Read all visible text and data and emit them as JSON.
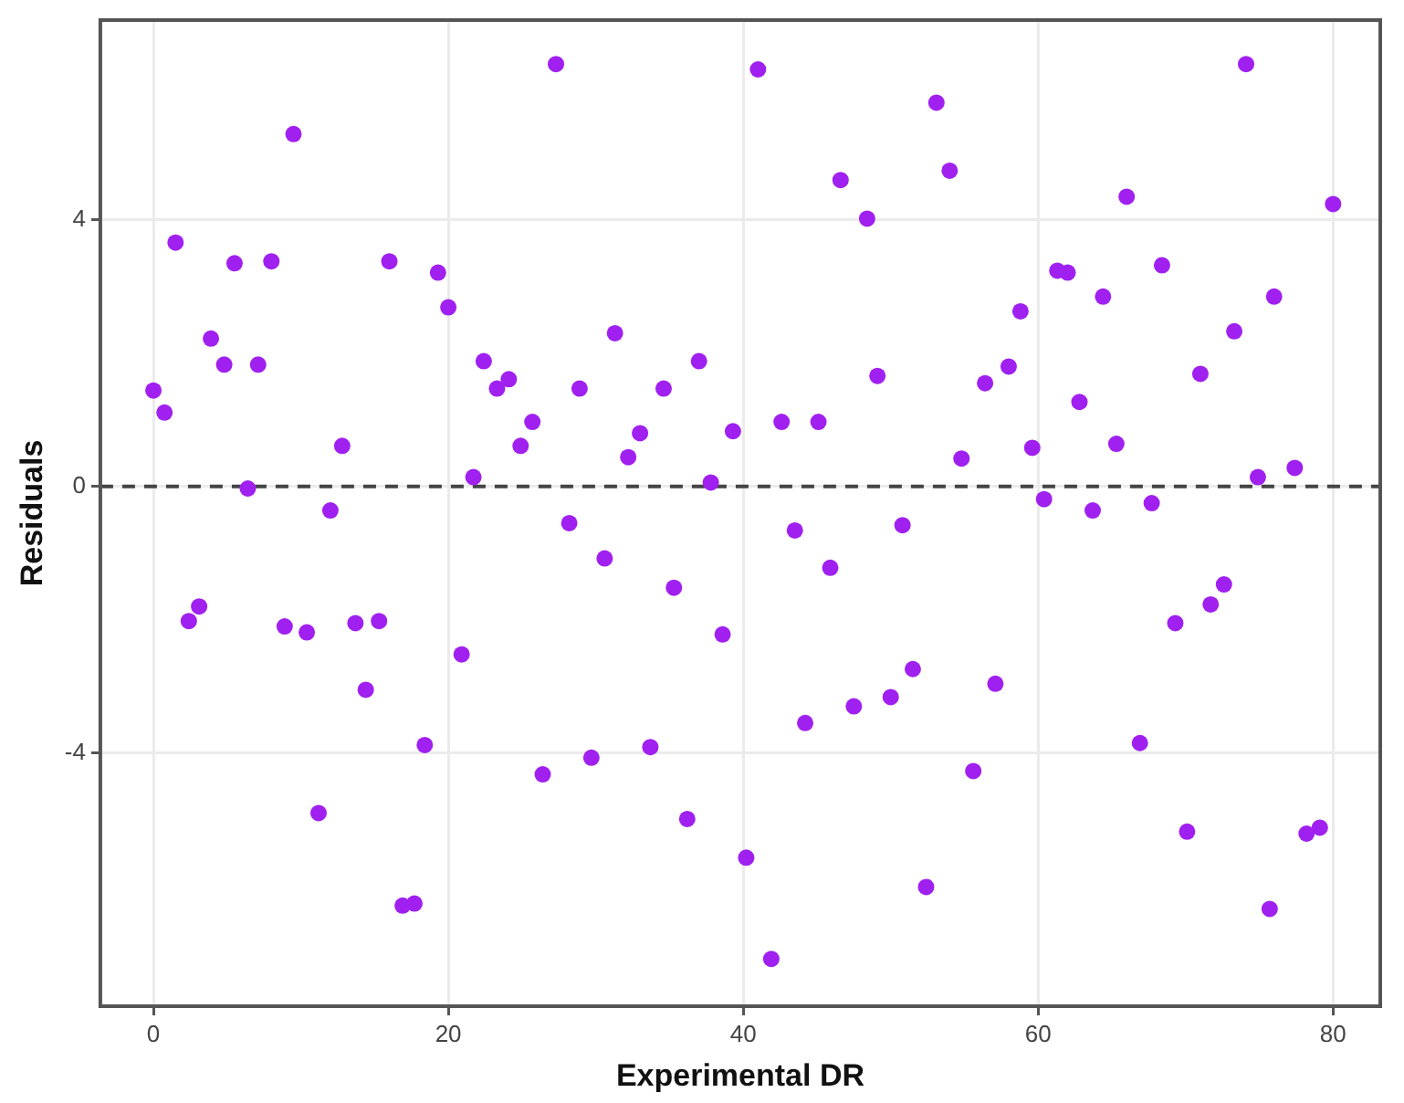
{
  "chart_data": {
    "type": "scatter",
    "xlabel": "Experimental DR",
    "ylabel": "Residuals",
    "x": [
      0,
      0.75,
      1.5,
      2.4,
      3.1,
      3.9,
      4.8,
      5.5,
      6.4,
      7.1,
      8.0,
      8.9,
      9.5,
      10.4,
      11.2,
      12.0,
      12.8,
      13.7,
      14.4,
      15.3,
      16.0,
      16.9,
      17.7,
      18.4,
      19.3,
      20.0,
      20.9,
      21.7,
      22.4,
      23.3,
      24.1,
      24.9,
      25.7,
      26.4,
      27.3,
      28.2,
      28.9,
      29.7,
      30.6,
      31.3,
      32.2,
      33.0,
      33.7,
      34.6,
      35.3,
      36.2,
      37.0,
      37.8,
      38.6,
      39.3,
      40.2,
      41.0,
      41.9,
      42.6,
      43.5,
      44.2,
      45.1,
      45.9,
      46.6,
      47.5,
      48.4,
      49.1,
      50.0,
      50.8,
      51.5,
      52.4,
      53.1,
      54.0,
      54.8,
      55.6,
      56.4,
      57.1,
      58.0,
      58.8,
      59.6,
      60.4,
      61.3,
      62.0,
      62.8,
      63.7,
      64.4,
      65.3,
      66.0,
      66.9,
      67.7,
      68.4,
      69.3,
      70.1,
      71.0,
      71.7,
      72.6,
      73.3,
      74.1,
      74.9,
      75.7,
      76.0,
      77.4,
      78.2,
      79.1,
      80.0
    ],
    "series": [
      {
        "color": "#a020f0",
        "values": [
          1.44,
          1.11,
          3.66,
          -2.02,
          -1.8,
          2.22,
          1.83,
          3.35,
          -0.03,
          1.83,
          3.38,
          -2.1,
          5.29,
          -2.19,
          -4.9,
          -0.36,
          0.61,
          -2.05,
          -3.05,
          -2.02,
          3.38,
          -6.29,
          -6.26,
          -3.88,
          3.21,
          2.69,
          -2.52,
          0.14,
          1.88,
          1.47,
          1.61,
          0.61,
          0.97,
          -4.32,
          6.34,
          -0.55,
          1.47,
          -4.07,
          -1.08,
          2.3,
          0.44,
          0.8,
          -3.91,
          1.47,
          -1.52,
          -4.99,
          1.88,
          0.06,
          -2.22,
          0.83,
          -5.57,
          6.26,
          -7.09,
          0.97,
          -0.66,
          -3.55,
          0.97,
          -1.22,
          4.6,
          -3.3,
          4.02,
          1.66,
          -3.16,
          -0.58,
          -2.74,
          -6.01,
          5.76,
          4.74,
          0.42,
          -4.27,
          1.55,
          -2.96,
          1.8,
          2.63,
          0.58,
          -0.19,
          3.24,
          3.21,
          1.27,
          -0.36,
          2.85,
          0.64,
          4.35,
          -3.85,
          -0.25,
          3.32,
          -2.05,
          -5.18,
          1.69,
          -1.77,
          -1.47,
          2.33,
          6.34,
          0.14,
          -6.34,
          2.85,
          0.28,
          -5.21,
          -5.12,
          4.24
        ]
      }
    ],
    "xlim": [
      -3.6,
      83.2
    ],
    "xticks": [
      0,
      20,
      40,
      60,
      80
    ],
    "ylim": [
      -7.8,
      7.0
    ],
    "yticks": [
      -4,
      0,
      4
    ],
    "ref_lines": [
      {
        "axis": "y",
        "value": 0,
        "color": "#444444",
        "line_style": "dashed"
      }
    ],
    "grid": true,
    "marker": "circle",
    "legend": false
  }
}
